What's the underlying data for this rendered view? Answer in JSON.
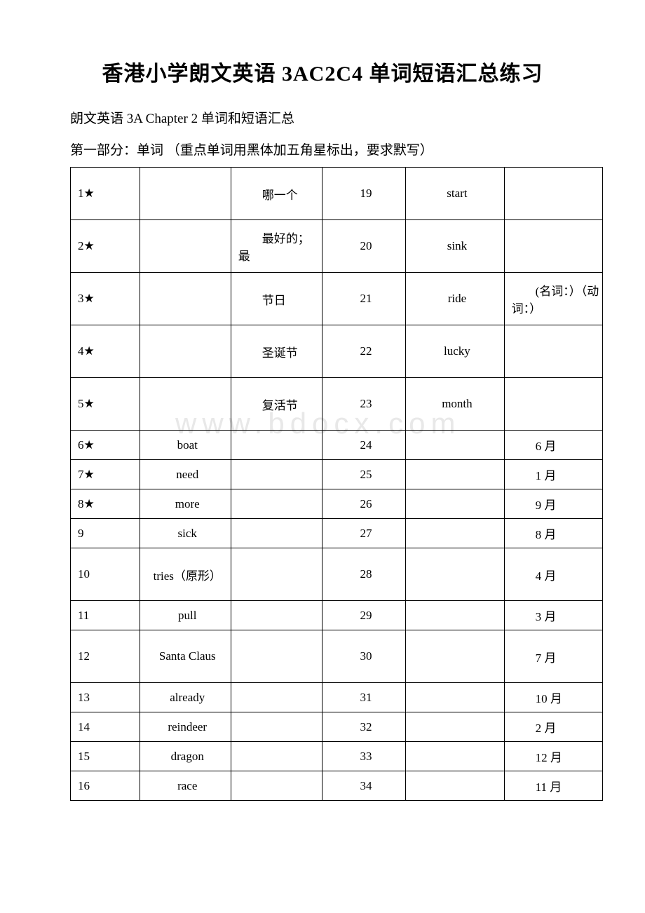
{
  "title": "香港小学朗文英语 3AC2C4 单词短语汇总练习",
  "subtitle": "朗文英语 3A Chapter 2 单词和短语汇总",
  "section_label": "第一部分：单词 （重点单词用黑体加五角星标出，要求默写）",
  "watermark": "www.bdocx.com",
  "rows": [
    {
      "n1": "1★",
      "w1": "",
      "d1": "哪一个",
      "n2": "19",
      "w2": "start",
      "d2": ""
    },
    {
      "n1": "2★",
      "w1": "",
      "d1": "最好的；最",
      "n2": "20",
      "w2": "sink",
      "d2": ""
    },
    {
      "n1": "3★",
      "w1": "",
      "d1": "节日",
      "n2": "21",
      "w2": "ride",
      "d2": "(名词：）（动词：）"
    },
    {
      "n1": "4★",
      "w1": "",
      "d1": "圣诞节",
      "n2": "22",
      "w2": "lucky",
      "d2": ""
    },
    {
      "n1": "5★",
      "w1": "",
      "d1": "复活节",
      "n2": "23",
      "w2": "month",
      "d2": ""
    },
    {
      "n1": "6★",
      "w1": "boat",
      "d1": "",
      "n2": "24",
      "w2": "",
      "d2": "6 月"
    },
    {
      "n1": "7★",
      "w1": "need",
      "d1": "",
      "n2": "25",
      "w2": "",
      "d2": "1 月"
    },
    {
      "n1": "8★",
      "w1": "more",
      "d1": "",
      "n2": "26",
      "w2": "",
      "d2": "9 月"
    },
    {
      "n1": "9",
      "w1": "sick",
      "d1": "",
      "n2": "27",
      "w2": "",
      "d2": "8 月"
    },
    {
      "n1": "10",
      "w1": "tries（原形）",
      "d1": "",
      "n2": "28",
      "w2": "",
      "d2": "4 月"
    },
    {
      "n1": "11",
      "w1": "pull",
      "d1": "",
      "n2": "29",
      "w2": "",
      "d2": "3 月"
    },
    {
      "n1": "12",
      "w1": "Santa Claus",
      "d1": "",
      "n2": "30",
      "w2": "",
      "d2": "7 月"
    },
    {
      "n1": "13",
      "w1": "already",
      "d1": "",
      "n2": "31",
      "w2": "",
      "d2": "10 月"
    },
    {
      "n1": "14",
      "w1": "reindeer",
      "d1": "",
      "n2": "32",
      "w2": "",
      "d2": "2 月"
    },
    {
      "n1": "15",
      "w1": "dragon",
      "d1": "",
      "n2": "33",
      "w2": "",
      "d2": "12 月"
    },
    {
      "n1": "16",
      "w1": "race",
      "d1": "",
      "n2": "34",
      "w2": "",
      "d2": "11 月"
    }
  ]
}
